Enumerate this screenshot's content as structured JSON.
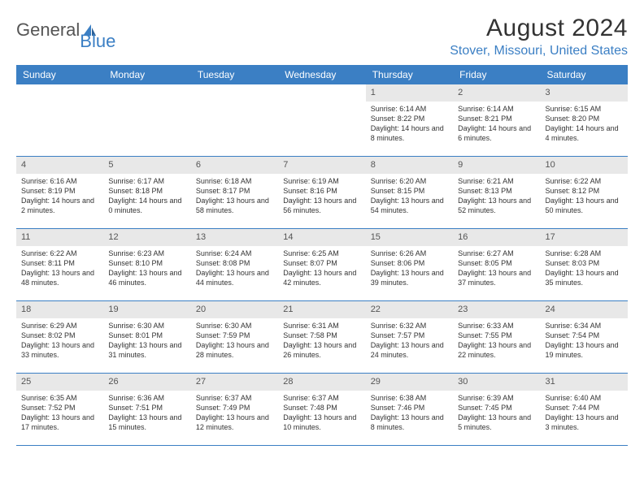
{
  "brand": {
    "part1": "General",
    "part2": "Blue"
  },
  "title": "August 2024",
  "location": "Stover, Missouri, United States",
  "colors": {
    "header_bg": "#3b7fc4",
    "header_text": "#ffffff",
    "daynum_bg": "#e8e8e8",
    "border": "#3b7fc4",
    "text": "#333333",
    "brand_gray": "#555555",
    "brand_blue": "#3b7fc4"
  },
  "day_headers": [
    "Sunday",
    "Monday",
    "Tuesday",
    "Wednesday",
    "Thursday",
    "Friday",
    "Saturday"
  ],
  "weeks": [
    [
      {
        "n": "",
        "sr": "",
        "ss": "",
        "dl": ""
      },
      {
        "n": "",
        "sr": "",
        "ss": "",
        "dl": ""
      },
      {
        "n": "",
        "sr": "",
        "ss": "",
        "dl": ""
      },
      {
        "n": "",
        "sr": "",
        "ss": "",
        "dl": ""
      },
      {
        "n": "1",
        "sr": "Sunrise: 6:14 AM",
        "ss": "Sunset: 8:22 PM",
        "dl": "Daylight: 14 hours and 8 minutes."
      },
      {
        "n": "2",
        "sr": "Sunrise: 6:14 AM",
        "ss": "Sunset: 8:21 PM",
        "dl": "Daylight: 14 hours and 6 minutes."
      },
      {
        "n": "3",
        "sr": "Sunrise: 6:15 AM",
        "ss": "Sunset: 8:20 PM",
        "dl": "Daylight: 14 hours and 4 minutes."
      }
    ],
    [
      {
        "n": "4",
        "sr": "Sunrise: 6:16 AM",
        "ss": "Sunset: 8:19 PM",
        "dl": "Daylight: 14 hours and 2 minutes."
      },
      {
        "n": "5",
        "sr": "Sunrise: 6:17 AM",
        "ss": "Sunset: 8:18 PM",
        "dl": "Daylight: 14 hours and 0 minutes."
      },
      {
        "n": "6",
        "sr": "Sunrise: 6:18 AM",
        "ss": "Sunset: 8:17 PM",
        "dl": "Daylight: 13 hours and 58 minutes."
      },
      {
        "n": "7",
        "sr": "Sunrise: 6:19 AM",
        "ss": "Sunset: 8:16 PM",
        "dl": "Daylight: 13 hours and 56 minutes."
      },
      {
        "n": "8",
        "sr": "Sunrise: 6:20 AM",
        "ss": "Sunset: 8:15 PM",
        "dl": "Daylight: 13 hours and 54 minutes."
      },
      {
        "n": "9",
        "sr": "Sunrise: 6:21 AM",
        "ss": "Sunset: 8:13 PM",
        "dl": "Daylight: 13 hours and 52 minutes."
      },
      {
        "n": "10",
        "sr": "Sunrise: 6:22 AM",
        "ss": "Sunset: 8:12 PM",
        "dl": "Daylight: 13 hours and 50 minutes."
      }
    ],
    [
      {
        "n": "11",
        "sr": "Sunrise: 6:22 AM",
        "ss": "Sunset: 8:11 PM",
        "dl": "Daylight: 13 hours and 48 minutes."
      },
      {
        "n": "12",
        "sr": "Sunrise: 6:23 AM",
        "ss": "Sunset: 8:10 PM",
        "dl": "Daylight: 13 hours and 46 minutes."
      },
      {
        "n": "13",
        "sr": "Sunrise: 6:24 AM",
        "ss": "Sunset: 8:08 PM",
        "dl": "Daylight: 13 hours and 44 minutes."
      },
      {
        "n": "14",
        "sr": "Sunrise: 6:25 AM",
        "ss": "Sunset: 8:07 PM",
        "dl": "Daylight: 13 hours and 42 minutes."
      },
      {
        "n": "15",
        "sr": "Sunrise: 6:26 AM",
        "ss": "Sunset: 8:06 PM",
        "dl": "Daylight: 13 hours and 39 minutes."
      },
      {
        "n": "16",
        "sr": "Sunrise: 6:27 AM",
        "ss": "Sunset: 8:05 PM",
        "dl": "Daylight: 13 hours and 37 minutes."
      },
      {
        "n": "17",
        "sr": "Sunrise: 6:28 AM",
        "ss": "Sunset: 8:03 PM",
        "dl": "Daylight: 13 hours and 35 minutes."
      }
    ],
    [
      {
        "n": "18",
        "sr": "Sunrise: 6:29 AM",
        "ss": "Sunset: 8:02 PM",
        "dl": "Daylight: 13 hours and 33 minutes."
      },
      {
        "n": "19",
        "sr": "Sunrise: 6:30 AM",
        "ss": "Sunset: 8:01 PM",
        "dl": "Daylight: 13 hours and 31 minutes."
      },
      {
        "n": "20",
        "sr": "Sunrise: 6:30 AM",
        "ss": "Sunset: 7:59 PM",
        "dl": "Daylight: 13 hours and 28 minutes."
      },
      {
        "n": "21",
        "sr": "Sunrise: 6:31 AM",
        "ss": "Sunset: 7:58 PM",
        "dl": "Daylight: 13 hours and 26 minutes."
      },
      {
        "n": "22",
        "sr": "Sunrise: 6:32 AM",
        "ss": "Sunset: 7:57 PM",
        "dl": "Daylight: 13 hours and 24 minutes."
      },
      {
        "n": "23",
        "sr": "Sunrise: 6:33 AM",
        "ss": "Sunset: 7:55 PM",
        "dl": "Daylight: 13 hours and 22 minutes."
      },
      {
        "n": "24",
        "sr": "Sunrise: 6:34 AM",
        "ss": "Sunset: 7:54 PM",
        "dl": "Daylight: 13 hours and 19 minutes."
      }
    ],
    [
      {
        "n": "25",
        "sr": "Sunrise: 6:35 AM",
        "ss": "Sunset: 7:52 PM",
        "dl": "Daylight: 13 hours and 17 minutes."
      },
      {
        "n": "26",
        "sr": "Sunrise: 6:36 AM",
        "ss": "Sunset: 7:51 PM",
        "dl": "Daylight: 13 hours and 15 minutes."
      },
      {
        "n": "27",
        "sr": "Sunrise: 6:37 AM",
        "ss": "Sunset: 7:49 PM",
        "dl": "Daylight: 13 hours and 12 minutes."
      },
      {
        "n": "28",
        "sr": "Sunrise: 6:37 AM",
        "ss": "Sunset: 7:48 PM",
        "dl": "Daylight: 13 hours and 10 minutes."
      },
      {
        "n": "29",
        "sr": "Sunrise: 6:38 AM",
        "ss": "Sunset: 7:46 PM",
        "dl": "Daylight: 13 hours and 8 minutes."
      },
      {
        "n": "30",
        "sr": "Sunrise: 6:39 AM",
        "ss": "Sunset: 7:45 PM",
        "dl": "Daylight: 13 hours and 5 minutes."
      },
      {
        "n": "31",
        "sr": "Sunrise: 6:40 AM",
        "ss": "Sunset: 7:44 PM",
        "dl": "Daylight: 13 hours and 3 minutes."
      }
    ]
  ]
}
